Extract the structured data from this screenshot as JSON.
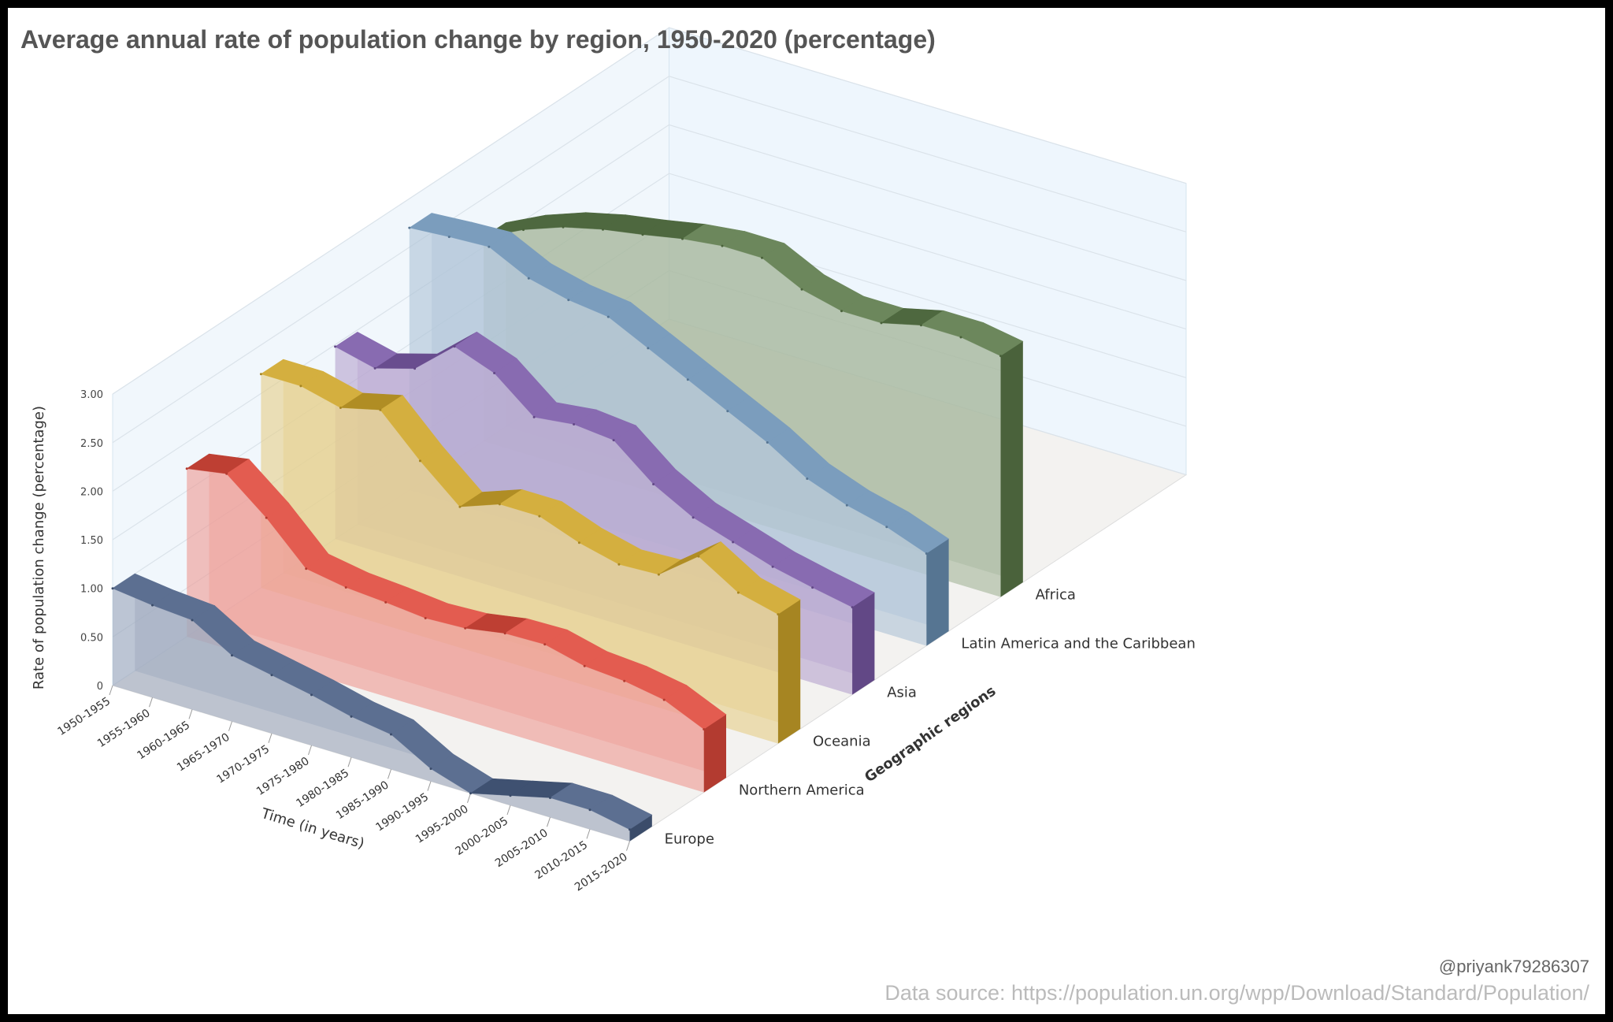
{
  "title": "Average annual rate of population change by region, 1950-2020 (percentage)",
  "credit": "@priyank79286307",
  "source": "Data source: https://population.un.org/wpp/Download/Standard/Population/",
  "chart_data": {
    "type": "area",
    "title": "Average annual rate of population change by region, 1950-2020 (percentage)",
    "ylabel": "Rate of population change (percentage)",
    "xlabel": "Time (in years)",
    "zlabel": "Geographic regions",
    "ylim": [
      0,
      3
    ],
    "yticks": [
      "0",
      "0.50",
      "1.00",
      "1.50",
      "2.00",
      "2.50",
      "3.00"
    ],
    "categories": [
      "1950-1955",
      "1955-1960",
      "1960-1965",
      "1965-1970",
      "1970-1975",
      "1975-1980",
      "1980-1985",
      "1985-1990",
      "1990-1995",
      "1995-2000",
      "2000-2005",
      "2005-2010",
      "2010-2015",
      "2015-2020"
    ],
    "grid": true,
    "series": [
      {
        "name": "Europe",
        "color": "#4a5f85",
        "values": [
          1.0,
          0.95,
          0.92,
          0.68,
          0.6,
          0.52,
          0.42,
          0.36,
          0.13,
          -0.02,
          0.1,
          0.2,
          0.2,
          0.12
        ]
      },
      {
        "name": "Northern America",
        "color": "#e04a3c",
        "values": [
          1.73,
          1.8,
          1.47,
          1.07,
          1.0,
          0.97,
          0.93,
          0.95,
          1.02,
          1.03,
          0.93,
          0.9,
          0.83,
          0.65
        ]
      },
      {
        "name": "Oceania",
        "color": "#cfa62a",
        "values": [
          2.2,
          2.2,
          2.1,
          2.2,
          1.8,
          1.45,
          1.6,
          1.6,
          1.45,
          1.35,
          1.37,
          1.68,
          1.43,
          1.33
        ]
      },
      {
        "name": "Asia",
        "color": "#7b5aa8",
        "values": [
          1.98,
          1.88,
          2.0,
          2.35,
          2.2,
          1.87,
          1.92,
          1.88,
          1.55,
          1.33,
          1.2,
          1.07,
          0.98,
          0.9
        ]
      },
      {
        "name": "Latin America and the Caribbean",
        "color": "#6c92b6",
        "values": [
          2.7,
          2.73,
          2.75,
          2.55,
          2.45,
          2.4,
          2.2,
          2.0,
          1.8,
          1.6,
          1.35,
          1.2,
          1.1,
          0.95
        ]
      },
      {
        "name": "Africa",
        "color": "#5c7a4a",
        "values": [
          2.1,
          2.3,
          2.45,
          2.55,
          2.62,
          2.7,
          2.75,
          2.75,
          2.55,
          2.45,
          2.45,
          2.55,
          2.55,
          2.48
        ]
      }
    ]
  }
}
